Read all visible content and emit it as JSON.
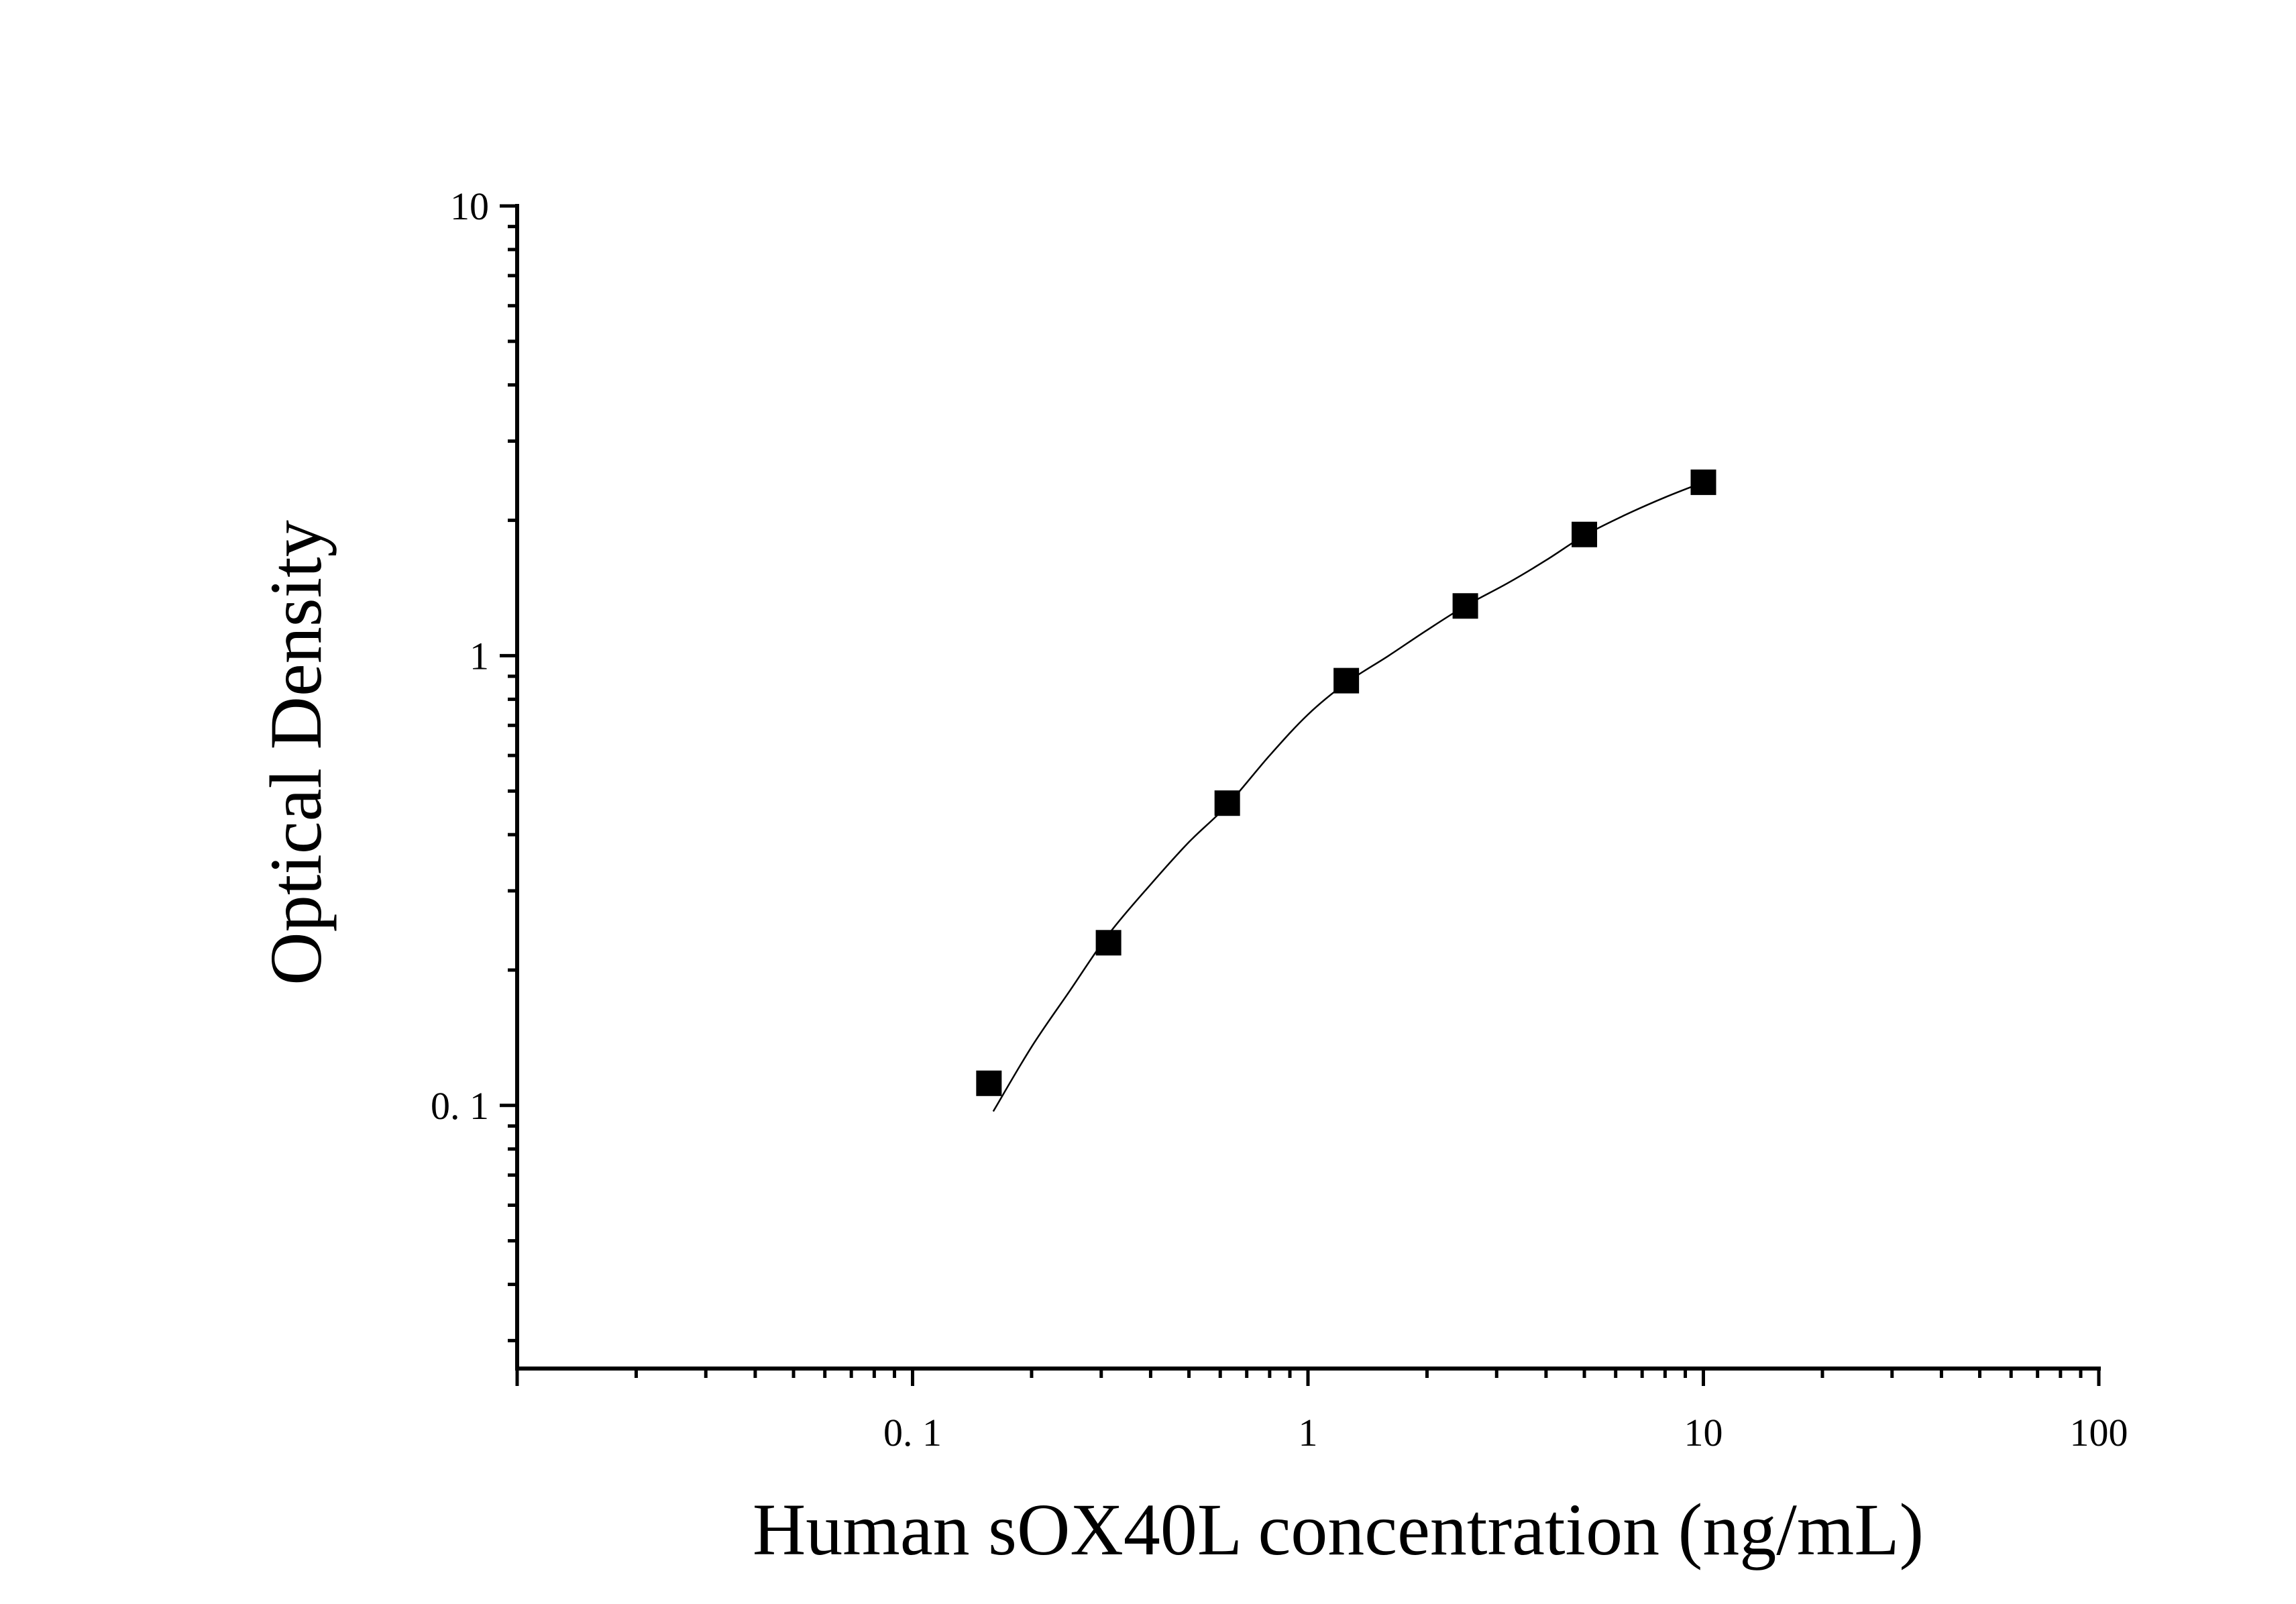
{
  "chart_data": {
    "type": "scatter",
    "title": "",
    "xlabel": "Human sOX40L concentration (ng/mL)",
    "ylabel": "Optical Density",
    "x_scale": "log",
    "y_scale": "log",
    "xlim": [
      0.01,
      100
    ],
    "ylim": [
      0.026,
      10
    ],
    "x_ticks": [
      {
        "value": 0.1,
        "label": "0. 1"
      },
      {
        "value": 1,
        "label": "1"
      },
      {
        "value": 10,
        "label": "10"
      },
      {
        "value": 100,
        "label": "100"
      }
    ],
    "y_ticks": [
      {
        "value": 0.1,
        "label": "0. 1"
      },
      {
        "value": 1,
        "label": "1"
      },
      {
        "value": 10,
        "label": "10"
      }
    ],
    "grid": false,
    "legend": "none",
    "series": [
      {
        "marker": "square",
        "color": "#000000",
        "points": [
          {
            "x": 0.156,
            "y": 0.112
          },
          {
            "x": 0.313,
            "y": 0.23
          },
          {
            "x": 0.625,
            "y": 0.47
          },
          {
            "x": 1.25,
            "y": 0.88
          },
          {
            "x": 2.5,
            "y": 1.29
          },
          {
            "x": 5,
            "y": 1.86
          },
          {
            "x": 10,
            "y": 2.43
          }
        ]
      }
    ],
    "fit_curve": {
      "type": "curve",
      "color": "#000000",
      "points": [
        {
          "x": 0.16,
          "y": 0.097
        },
        {
          "x": 0.2,
          "y": 0.135
        },
        {
          "x": 0.25,
          "y": 0.18
        },
        {
          "x": 0.313,
          "y": 0.24
        },
        {
          "x": 0.4,
          "y": 0.31
        },
        {
          "x": 0.5,
          "y": 0.385
        },
        {
          "x": 0.625,
          "y": 0.465
        },
        {
          "x": 0.8,
          "y": 0.6
        },
        {
          "x": 1.0,
          "y": 0.74
        },
        {
          "x": 1.25,
          "y": 0.87
        },
        {
          "x": 1.6,
          "y": 1.0
        },
        {
          "x": 2.0,
          "y": 1.14
        },
        {
          "x": 2.5,
          "y": 1.29
        },
        {
          "x": 3.2,
          "y": 1.45
        },
        {
          "x": 4.0,
          "y": 1.63
        },
        {
          "x": 5.0,
          "y": 1.85
        },
        {
          "x": 6.3,
          "y": 2.05
        },
        {
          "x": 8.0,
          "y": 2.25
        },
        {
          "x": 10.0,
          "y": 2.43
        }
      ]
    }
  }
}
